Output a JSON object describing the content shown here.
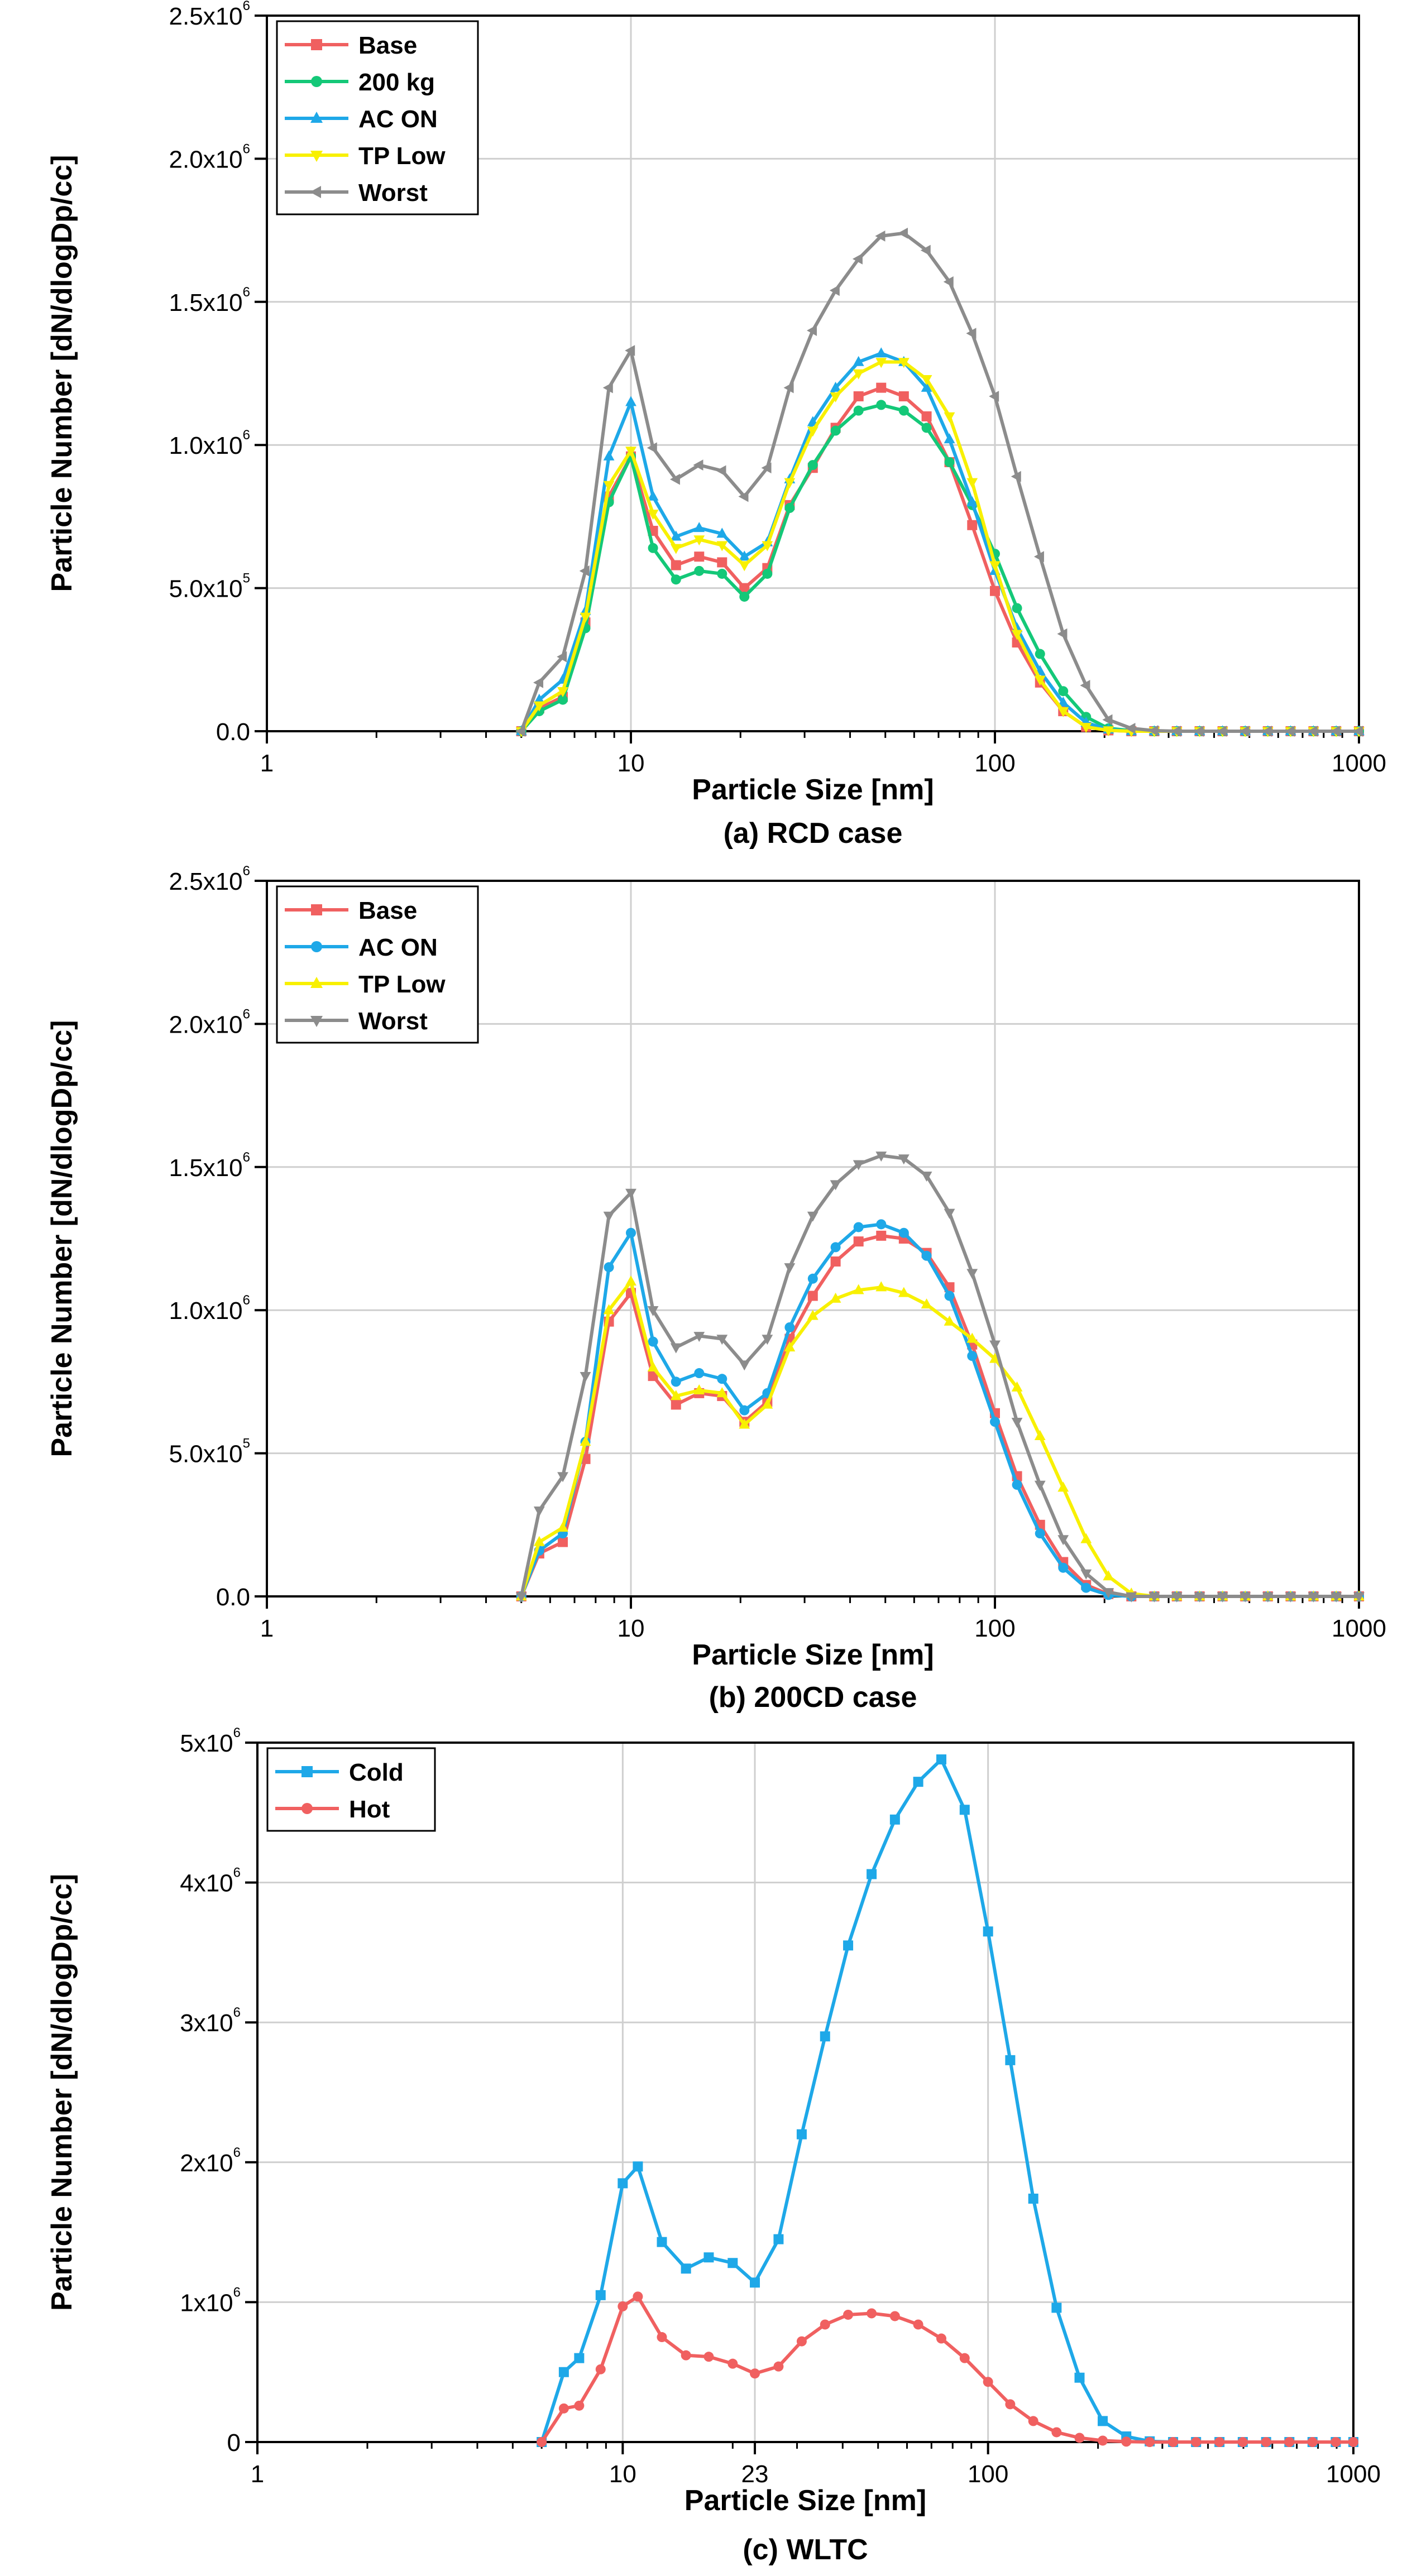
{
  "chart_data": [
    {
      "id": "a",
      "type": "line",
      "caption": "(a) RCD case",
      "xlabel": "Particle Size [nm]",
      "ylabel": "Particle Number [dN/dlogDp/cc]",
      "xscale": "log",
      "xlim": [
        1,
        1000
      ],
      "ylim": [
        0,
        2500000
      ],
      "grid": true,
      "legend": "top-left",
      "x_ticks": [
        {
          "v": 1,
          "label": "1"
        },
        {
          "v": 10,
          "label": "10"
        },
        {
          "v": 100,
          "label": "100"
        },
        {
          "v": 1000,
          "label": "1000"
        }
      ],
      "y_ticks": [
        {
          "v": 0,
          "m": "0.0",
          "e": ""
        },
        {
          "v": 500000,
          "m": "5.0x10",
          "e": "5"
        },
        {
          "v": 1000000,
          "m": "1.0x10",
          "e": "6"
        },
        {
          "v": 1500000,
          "m": "1.5x10",
          "e": "6"
        },
        {
          "v": 2000000,
          "m": "2.0x10",
          "e": "6"
        },
        {
          "v": 2500000,
          "m": "2.5x10",
          "e": "6"
        }
      ],
      "x": [
        5.0,
        5.6,
        6.5,
        7.5,
        8.7,
        10.0,
        11.5,
        13.3,
        15.4,
        17.8,
        20.5,
        23.7,
        27.3,
        31.6,
        36.5,
        42.2,
        48.7,
        56.2,
        64.9,
        75.0,
        86.6,
        100,
        115,
        133,
        154,
        178,
        205,
        237,
        274,
        316,
        365,
        422,
        487,
        562,
        649,
        750,
        866,
        1000
      ],
      "series": [
        {
          "name": "Base",
          "color": "#f06060",
          "marker": "square",
          "values": [
            0,
            80000,
            120000,
            380000,
            820000,
            960000,
            700000,
            580000,
            610000,
            590000,
            500000,
            570000,
            790000,
            920000,
            1060000,
            1170000,
            1200000,
            1170000,
            1100000,
            940000,
            720000,
            490000,
            310000,
            170000,
            70000,
            15000,
            3000,
            0,
            0,
            0,
            0,
            0,
            0,
            0,
            0,
            0,
            0,
            0
          ]
        },
        {
          "name": "200 kg",
          "color": "#14c878",
          "marker": "circle",
          "values": [
            0,
            70000,
            110000,
            360000,
            800000,
            960000,
            640000,
            530000,
            560000,
            550000,
            470000,
            550000,
            780000,
            930000,
            1050000,
            1120000,
            1140000,
            1120000,
            1060000,
            940000,
            790000,
            620000,
            430000,
            270000,
            140000,
            50000,
            10000,
            2000,
            0,
            0,
            0,
            0,
            0,
            0,
            0,
            0,
            0,
            0
          ]
        },
        {
          "name": "AC ON",
          "color": "#1ea8e8",
          "marker": "triangle-up",
          "values": [
            0,
            110000,
            180000,
            420000,
            960000,
            1150000,
            820000,
            680000,
            710000,
            690000,
            610000,
            660000,
            880000,
            1080000,
            1200000,
            1290000,
            1320000,
            1290000,
            1200000,
            1020000,
            800000,
            560000,
            360000,
            210000,
            100000,
            30000,
            6000,
            0,
            0,
            0,
            0,
            0,
            0,
            0,
            0,
            0,
            0,
            0
          ]
        },
        {
          "name": "TP Low",
          "color": "#f8f000",
          "marker": "triangle-down",
          "values": [
            0,
            90000,
            140000,
            400000,
            860000,
            980000,
            760000,
            640000,
            670000,
            650000,
            580000,
            650000,
            870000,
            1050000,
            1170000,
            1250000,
            1290000,
            1290000,
            1230000,
            1100000,
            870000,
            580000,
            340000,
            180000,
            70000,
            15000,
            3000,
            0,
            0,
            0,
            0,
            0,
            0,
            0,
            0,
            0,
            0,
            0
          ]
        },
        {
          "name": "Worst",
          "color": "#8c8c8c",
          "marker": "triangle-left",
          "values": [
            0,
            170000,
            260000,
            560000,
            1200000,
            1330000,
            990000,
            880000,
            930000,
            910000,
            820000,
            920000,
            1200000,
            1400000,
            1540000,
            1650000,
            1730000,
            1740000,
            1680000,
            1570000,
            1390000,
            1170000,
            890000,
            610000,
            340000,
            160000,
            40000,
            10000,
            2000,
            0,
            0,
            0,
            0,
            0,
            0,
            0,
            0,
            0
          ]
        }
      ]
    },
    {
      "id": "b",
      "type": "line",
      "caption": "(b) 200CD case",
      "xlabel": "Particle Size [nm]",
      "ylabel": "Particle Number [dN/dlogDp/cc]",
      "xscale": "log",
      "xlim": [
        1,
        1000
      ],
      "ylim": [
        0,
        2500000
      ],
      "grid": true,
      "legend": "top-left",
      "x_ticks": [
        {
          "v": 1,
          "label": "1"
        },
        {
          "v": 10,
          "label": "10"
        },
        {
          "v": 100,
          "label": "100"
        },
        {
          "v": 1000,
          "label": "1000"
        }
      ],
      "y_ticks": [
        {
          "v": 0,
          "m": "0.0",
          "e": ""
        },
        {
          "v": 500000,
          "m": "5.0x10",
          "e": "5"
        },
        {
          "v": 1000000,
          "m": "1.0x10",
          "e": "6"
        },
        {
          "v": 1500000,
          "m": "1.5x10",
          "e": "6"
        },
        {
          "v": 2000000,
          "m": "2.0x10",
          "e": "6"
        },
        {
          "v": 2500000,
          "m": "2.5x10",
          "e": "6"
        }
      ],
      "x": [
        5.0,
        5.6,
        6.5,
        7.5,
        8.7,
        10.0,
        11.5,
        13.3,
        15.4,
        17.8,
        20.5,
        23.7,
        27.3,
        31.6,
        36.5,
        42.2,
        48.7,
        56.2,
        64.9,
        75.0,
        86.6,
        100,
        115,
        133,
        154,
        178,
        205,
        237,
        274,
        316,
        365,
        422,
        487,
        562,
        649,
        750,
        866,
        1000
      ],
      "series": [
        {
          "name": "Base",
          "color": "#f06060",
          "marker": "square",
          "values": [
            0,
            150000,
            190000,
            480000,
            960000,
            1060000,
            770000,
            670000,
            710000,
            700000,
            610000,
            680000,
            900000,
            1050000,
            1170000,
            1240000,
            1260000,
            1250000,
            1200000,
            1080000,
            880000,
            640000,
            420000,
            250000,
            120000,
            40000,
            8000,
            0,
            0,
            0,
            0,
            0,
            0,
            0,
            0,
            0,
            0,
            0
          ]
        },
        {
          "name": "AC ON",
          "color": "#1ea8e8",
          "marker": "circle",
          "values": [
            0,
            160000,
            220000,
            540000,
            1150000,
            1270000,
            890000,
            750000,
            780000,
            760000,
            650000,
            710000,
            940000,
            1110000,
            1220000,
            1290000,
            1300000,
            1270000,
            1190000,
            1050000,
            840000,
            610000,
            390000,
            220000,
            100000,
            30000,
            5000,
            0,
            0,
            0,
            0,
            0,
            0,
            0,
            0,
            0,
            0,
            0
          ]
        },
        {
          "name": "TP Low",
          "color": "#f8f000",
          "marker": "triangle-up",
          "values": [
            0,
            190000,
            240000,
            540000,
            1000000,
            1100000,
            800000,
            700000,
            720000,
            710000,
            600000,
            670000,
            870000,
            980000,
            1040000,
            1070000,
            1080000,
            1060000,
            1020000,
            960000,
            900000,
            830000,
            730000,
            560000,
            380000,
            200000,
            70000,
            10000,
            0,
            0,
            0,
            0,
            0,
            0,
            0,
            0,
            0,
            0
          ]
        },
        {
          "name": "Worst",
          "color": "#8c8c8c",
          "marker": "triangle-down",
          "values": [
            0,
            300000,
            420000,
            770000,
            1330000,
            1410000,
            1000000,
            870000,
            910000,
            900000,
            810000,
            900000,
            1150000,
            1330000,
            1440000,
            1510000,
            1540000,
            1530000,
            1470000,
            1340000,
            1130000,
            880000,
            610000,
            390000,
            200000,
            80000,
            15000,
            0,
            0,
            0,
            0,
            0,
            0,
            0,
            0,
            0,
            0,
            0
          ]
        }
      ]
    },
    {
      "id": "c",
      "type": "line",
      "caption": "(c) WLTC",
      "xlabel": "Particle Size [nm]",
      "ylabel": "Particle Number [dN/dlogDp/cc]",
      "xscale": "log",
      "xlim": [
        1,
        1000
      ],
      "ylim": [
        0,
        5000000
      ],
      "grid": true,
      "legend": "top-left",
      "x_ticks": [
        {
          "v": 1,
          "label": "1"
        },
        {
          "v": 10,
          "label": "10"
        },
        {
          "v": 23,
          "label": "23"
        },
        {
          "v": 100,
          "label": "100"
        },
        {
          "v": 1000,
          "label": "1000"
        }
      ],
      "y_ticks": [
        {
          "v": 0,
          "m": "0",
          "e": ""
        },
        {
          "v": 1000000,
          "m": "1x10",
          "e": "6"
        },
        {
          "v": 2000000,
          "m": "2x10",
          "e": "6"
        },
        {
          "v": 3000000,
          "m": "3x10",
          "e": "6"
        },
        {
          "v": 4000000,
          "m": "4x10",
          "e": "6"
        },
        {
          "v": 5000000,
          "m": "5x10",
          "e": "6"
        }
      ],
      "x": [
        6.0,
        6.9,
        7.6,
        8.7,
        10.0,
        11.0,
        12.8,
        14.9,
        17.2,
        20.0,
        23.0,
        26.7,
        30.9,
        35.8,
        41.4,
        48.0,
        55.6,
        64.4,
        74.5,
        86.3,
        100,
        115,
        133,
        154,
        178,
        206,
        239,
        277,
        321,
        371,
        430,
        498,
        577,
        668,
        773,
        895,
        1000
      ],
      "series": [
        {
          "name": "Cold",
          "color": "#1ea8e8",
          "marker": "square",
          "values": [
            0,
            500000,
            600000,
            1050000,
            1850000,
            1970000,
            1430000,
            1240000,
            1320000,
            1280000,
            1140000,
            1450000,
            2200000,
            2900000,
            3550000,
            4060000,
            4450000,
            4720000,
            4880000,
            4520000,
            3650000,
            2730000,
            1740000,
            960000,
            460000,
            150000,
            40000,
            5000,
            0,
            0,
            0,
            0,
            0,
            0,
            0,
            0,
            0
          ]
        },
        {
          "name": "Hot",
          "color": "#f06060",
          "marker": "circle",
          "values": [
            0,
            240000,
            260000,
            520000,
            970000,
            1040000,
            750000,
            620000,
            610000,
            560000,
            490000,
            540000,
            720000,
            840000,
            910000,
            920000,
            900000,
            840000,
            740000,
            600000,
            430000,
            270000,
            150000,
            70000,
            30000,
            10000,
            3000,
            0,
            0,
            0,
            0,
            0,
            0,
            0,
            0,
            0,
            0
          ]
        }
      ]
    }
  ]
}
